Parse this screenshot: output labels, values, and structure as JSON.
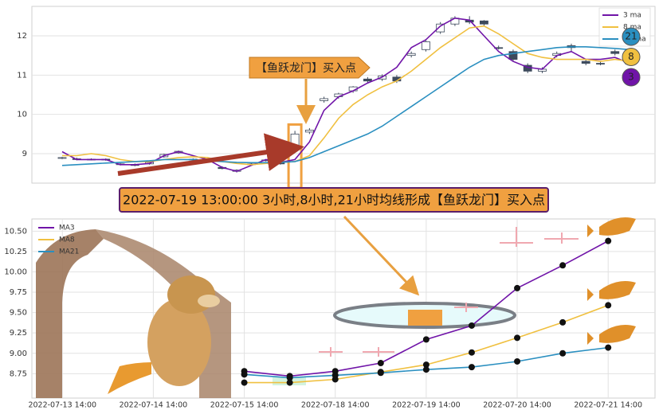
{
  "banner": "2022-07-19 13:00:00 3小时,8小时,21小时均线形成【鱼跃龙门】买入点",
  "chart_data": [
    {
      "type": "candlestick",
      "annotation": "【鱼跃龙门】买入点",
      "ylim": [
        8.25,
        12.75
      ],
      "yticks": [
        9,
        10,
        11,
        12
      ],
      "grid": true,
      "legend": "upper right",
      "candle_colors": {
        "up": "#ffffff",
        "down": "#3d4a5c",
        "edge": "#3d4a5c"
      },
      "candles": [
        [
          8.88,
          8.9,
          8.92,
          8.86
        ],
        [
          8.87,
          8.85,
          8.9,
          8.83
        ],
        [
          8.85,
          8.86,
          8.88,
          8.83
        ],
        [
          8.86,
          8.84,
          8.88,
          8.82
        ],
        [
          8.72,
          8.74,
          8.76,
          8.7
        ],
        [
          8.72,
          8.7,
          8.75,
          8.68
        ],
        [
          8.74,
          8.78,
          8.8,
          8.72
        ],
        [
          8.92,
          8.98,
          9.0,
          8.9
        ],
        [
          9.02,
          9.06,
          9.08,
          9.0
        ],
        [
          8.86,
          8.84,
          8.88,
          8.82
        ],
        [
          8.8,
          8.82,
          8.84,
          8.78
        ],
        [
          8.65,
          8.62,
          8.68,
          8.6
        ],
        [
          8.55,
          8.58,
          8.6,
          8.52
        ],
        [
          8.72,
          8.74,
          8.76,
          8.7
        ],
        [
          8.82,
          8.84,
          8.86,
          8.8
        ],
        [
          8.76,
          8.74,
          8.78,
          8.72
        ],
        [
          9.2,
          9.5,
          9.58,
          9.18
        ],
        [
          9.55,
          9.6,
          9.65,
          9.5
        ],
        [
          10.35,
          10.4,
          10.45,
          10.3
        ],
        [
          10.45,
          10.52,
          10.55,
          10.4
        ],
        [
          10.6,
          10.7,
          10.72,
          10.55
        ],
        [
          10.9,
          10.85,
          10.95,
          10.8
        ],
        [
          10.9,
          10.98,
          11.02,
          10.85
        ],
        [
          10.95,
          10.85,
          11.0,
          10.8
        ],
        [
          11.5,
          11.55,
          11.6,
          11.45
        ],
        [
          11.65,
          11.85,
          11.9,
          11.6
        ],
        [
          12.1,
          12.3,
          12.35,
          12.05
        ],
        [
          12.3,
          12.45,
          12.5,
          12.25
        ],
        [
          12.4,
          12.35,
          12.5,
          12.3
        ],
        [
          12.38,
          12.3,
          12.4,
          12.25
        ],
        [
          11.7,
          11.68,
          11.75,
          11.65
        ],
        [
          11.6,
          11.4,
          11.65,
          11.35
        ],
        [
          11.25,
          11.1,
          11.3,
          11.05
        ],
        [
          11.1,
          11.15,
          11.2,
          11.05
        ],
        [
          11.5,
          11.55,
          11.6,
          11.45
        ],
        [
          11.75,
          11.7,
          11.8,
          11.6
        ],
        [
          11.35,
          11.3,
          11.4,
          11.25
        ],
        [
          11.3,
          11.28,
          11.35,
          11.25
        ],
        [
          11.6,
          11.55,
          11.65,
          11.5
        ],
        [
          11.3,
          11.28,
          11.35,
          11.25
        ]
      ],
      "signal_index": 16,
      "series": [
        {
          "name": "3 ma",
          "color": "#7014a8",
          "end_label": "3",
          "values": [
            9.05,
            8.85,
            8.85,
            8.85,
            8.72,
            8.72,
            8.75,
            8.95,
            9.05,
            8.95,
            8.85,
            8.65,
            8.55,
            8.7,
            8.85,
            8.78,
            8.85,
            9.3,
            10.1,
            10.45,
            10.6,
            10.8,
            10.95,
            11.2,
            11.7,
            11.9,
            12.25,
            12.45,
            12.4,
            12.0,
            11.6,
            11.35,
            11.2,
            11.15,
            11.5,
            11.6,
            11.4,
            11.4,
            11.45,
            11.3
          ]
        },
        {
          "name": "8 ma",
          "color": "#f0c040",
          "end_label": "8",
          "values": [
            8.95,
            8.95,
            9.0,
            8.95,
            8.85,
            8.8,
            8.8,
            8.85,
            8.9,
            8.92,
            8.9,
            8.8,
            8.75,
            8.72,
            8.75,
            8.78,
            8.8,
            8.95,
            9.4,
            9.9,
            10.25,
            10.5,
            10.7,
            10.85,
            11.1,
            11.4,
            11.7,
            11.95,
            12.2,
            12.25,
            12.05,
            11.8,
            11.55,
            11.45,
            11.4,
            11.4,
            11.4,
            11.35,
            11.4,
            11.35
          ]
        },
        {
          "name": "21 ma",
          "color": "#2a8fc0",
          "end_label": "21",
          "values": [
            8.7,
            8.72,
            8.74,
            8.76,
            8.78,
            8.8,
            8.82,
            8.85,
            8.85,
            8.85,
            8.82,
            8.8,
            8.78,
            8.77,
            8.77,
            8.78,
            8.8,
            8.9,
            9.05,
            9.2,
            9.35,
            9.5,
            9.7,
            9.95,
            10.2,
            10.45,
            10.7,
            10.95,
            11.2,
            11.4,
            11.5,
            11.55,
            11.6,
            11.65,
            11.7,
            11.72,
            11.72,
            11.7,
            11.68,
            11.65
          ]
        }
      ]
    },
    {
      "type": "line",
      "xlim": [
        -0.67,
        13.03
      ],
      "ylim": [
        8.45,
        10.65
      ],
      "grid": true,
      "legend": "upper left",
      "xticks": [
        {
          "value": 0,
          "label": "2022-07-13 14:00"
        },
        {
          "value": 2,
          "label": "2022-07-14 14:00"
        },
        {
          "value": 4,
          "label": "2022-07-15 14:00"
        },
        {
          "value": 6,
          "label": "2022-07-18 14:00"
        },
        {
          "value": 8,
          "label": "2022-07-19 14:00"
        },
        {
          "value": 10,
          "label": "2022-07-20 14:00"
        },
        {
          "value": 12,
          "label": "2022-07-21 14:00"
        }
      ],
      "yticks": [
        8.75,
        {
          "value": 9,
          "label": "9.00"
        },
        9.25,
        {
          "value": 9.5,
          "label": "9.50"
        },
        9.75,
        {
          "value": 10,
          "label": "10.00"
        },
        10.25,
        {
          "value": 10.5,
          "label": "10.50"
        }
      ],
      "x": [
        4,
        5,
        6,
        7,
        8,
        9,
        10,
        11,
        12
      ],
      "series": [
        {
          "name": "MA3",
          "color": "#7014a8",
          "values": [
            8.78,
            8.72,
            8.78,
            8.88,
            9.17,
            9.34,
            9.8,
            10.08,
            10.38
          ]
        },
        {
          "name": "MA8",
          "color": "#f0c040",
          "values": [
            8.64,
            8.64,
            8.68,
            8.77,
            8.86,
            9.01,
            9.19,
            9.38,
            9.59
          ]
        },
        {
          "name": "MA21",
          "color": "#2a8fc0",
          "values": [
            8.74,
            8.7,
            8.73,
            8.76,
            8.8,
            8.83,
            8.9,
            9.0,
            9.07
          ]
        }
      ]
    }
  ]
}
